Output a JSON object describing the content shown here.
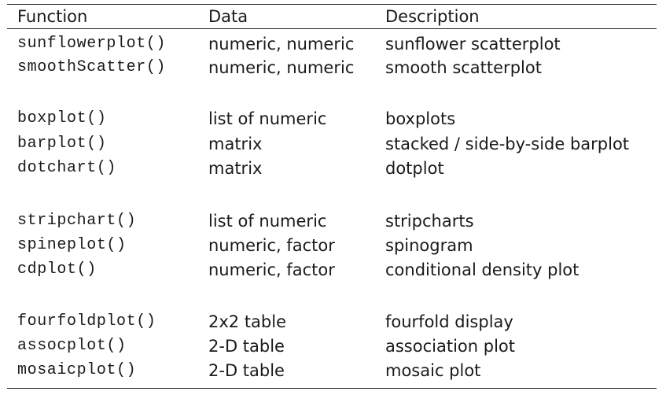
{
  "headers": {
    "function": "Function",
    "data": "Data",
    "description": "Description"
  },
  "rows": [
    {
      "function": "sunflowerplot()",
      "data": "numeric, numeric",
      "description": "sunflower scatterplot"
    },
    {
      "function": "smoothScatter()",
      "data": "numeric, numeric",
      "description": "smooth scatterplot"
    },
    {
      "function": "boxplot()",
      "data": "list of numeric",
      "description": "boxplots"
    },
    {
      "function": "barplot()",
      "data": "matrix",
      "description": "stacked / side-by-side barplot"
    },
    {
      "function": "dotchart()",
      "data": "matrix",
      "description": "dotplot"
    },
    {
      "function": "stripchart()",
      "data": "list of numeric",
      "description": "stripcharts"
    },
    {
      "function": "spineplot()",
      "data": "numeric, factor",
      "description": "spinogram"
    },
    {
      "function": "cdplot()",
      "data": "numeric, factor",
      "description": "conditional density plot"
    },
    {
      "function": "fourfoldplot()",
      "data": "2x2 table",
      "description": "fourfold display"
    },
    {
      "function": "assocplot()",
      "data": "2-D table",
      "description": "association plot"
    },
    {
      "function": "mosaicplot()",
      "data": "2-D table",
      "description": "mosaic plot"
    }
  ]
}
